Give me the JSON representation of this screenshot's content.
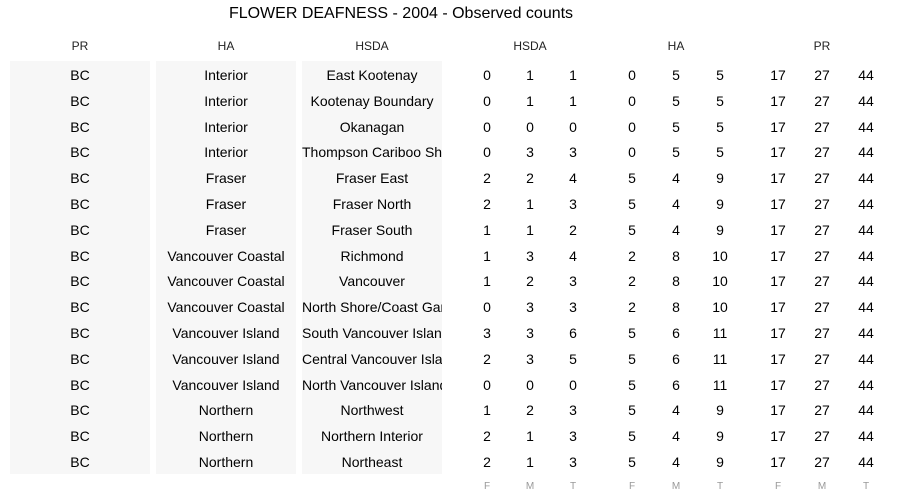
{
  "chart_data": {
    "type": "table",
    "title": "FLOWER DEAFNESS - 2004 - Observed counts",
    "text_headers": [
      "PR",
      "HA",
      "HSDA"
    ],
    "group_headers": [
      "HSDA",
      "HA",
      "PR"
    ],
    "sub_headers": [
      "F",
      "M",
      "T"
    ],
    "rows": [
      {
        "pr": "BC",
        "ha": "Interior",
        "hsda": "East Kootenay",
        "hsda_counts": [
          0,
          1,
          1
        ],
        "ha_counts": [
          0,
          5,
          5
        ],
        "pr_counts": [
          17,
          27,
          44
        ]
      },
      {
        "pr": "BC",
        "ha": "Interior",
        "hsda": "Kootenay Boundary",
        "hsda_counts": [
          0,
          1,
          1
        ],
        "ha_counts": [
          0,
          5,
          5
        ],
        "pr_counts": [
          17,
          27,
          44
        ]
      },
      {
        "pr": "BC",
        "ha": "Interior",
        "hsda": "Okanagan",
        "hsda_counts": [
          0,
          0,
          0
        ],
        "ha_counts": [
          0,
          5,
          5
        ],
        "pr_counts": [
          17,
          27,
          44
        ]
      },
      {
        "pr": "BC",
        "ha": "Interior",
        "hsda": "Thompson Cariboo Shuswap",
        "hsda_counts": [
          0,
          3,
          3
        ],
        "ha_counts": [
          0,
          5,
          5
        ],
        "pr_counts": [
          17,
          27,
          44
        ]
      },
      {
        "pr": "BC",
        "ha": "Fraser",
        "hsda": "Fraser East",
        "hsda_counts": [
          2,
          2,
          4
        ],
        "ha_counts": [
          5,
          4,
          9
        ],
        "pr_counts": [
          17,
          27,
          44
        ]
      },
      {
        "pr": "BC",
        "ha": "Fraser",
        "hsda": "Fraser North",
        "hsda_counts": [
          2,
          1,
          3
        ],
        "ha_counts": [
          5,
          4,
          9
        ],
        "pr_counts": [
          17,
          27,
          44
        ]
      },
      {
        "pr": "BC",
        "ha": "Fraser",
        "hsda": "Fraser South",
        "hsda_counts": [
          1,
          1,
          2
        ],
        "ha_counts": [
          5,
          4,
          9
        ],
        "pr_counts": [
          17,
          27,
          44
        ]
      },
      {
        "pr": "BC",
        "ha": "Vancouver Coastal",
        "hsda": "Richmond",
        "hsda_counts": [
          1,
          3,
          4
        ],
        "ha_counts": [
          2,
          8,
          10
        ],
        "pr_counts": [
          17,
          27,
          44
        ]
      },
      {
        "pr": "BC",
        "ha": "Vancouver Coastal",
        "hsda": "Vancouver",
        "hsda_counts": [
          1,
          2,
          3
        ],
        "ha_counts": [
          2,
          8,
          10
        ],
        "pr_counts": [
          17,
          27,
          44
        ]
      },
      {
        "pr": "BC",
        "ha": "Vancouver Coastal",
        "hsda": "North Shore/Coast Garibaldi",
        "hsda_counts": [
          0,
          3,
          3
        ],
        "ha_counts": [
          2,
          8,
          10
        ],
        "pr_counts": [
          17,
          27,
          44
        ]
      },
      {
        "pr": "BC",
        "ha": "Vancouver Island",
        "hsda": "South Vancouver Island",
        "hsda_counts": [
          3,
          3,
          6
        ],
        "ha_counts": [
          5,
          6,
          11
        ],
        "pr_counts": [
          17,
          27,
          44
        ]
      },
      {
        "pr": "BC",
        "ha": "Vancouver Island",
        "hsda": "Central Vancouver Island",
        "hsda_counts": [
          2,
          3,
          5
        ],
        "ha_counts": [
          5,
          6,
          11
        ],
        "pr_counts": [
          17,
          27,
          44
        ]
      },
      {
        "pr": "BC",
        "ha": "Vancouver Island",
        "hsda": "North Vancouver Island",
        "hsda_counts": [
          0,
          0,
          0
        ],
        "ha_counts": [
          5,
          6,
          11
        ],
        "pr_counts": [
          17,
          27,
          44
        ]
      },
      {
        "pr": "BC",
        "ha": "Northern",
        "hsda": "Northwest",
        "hsda_counts": [
          1,
          2,
          3
        ],
        "ha_counts": [
          5,
          4,
          9
        ],
        "pr_counts": [
          17,
          27,
          44
        ]
      },
      {
        "pr": "BC",
        "ha": "Northern",
        "hsda": "Northern Interior",
        "hsda_counts": [
          2,
          1,
          3
        ],
        "ha_counts": [
          5,
          4,
          9
        ],
        "pr_counts": [
          17,
          27,
          44
        ]
      },
      {
        "pr": "BC",
        "ha": "Northern",
        "hsda": "Northeast",
        "hsda_counts": [
          2,
          1,
          3
        ],
        "ha_counts": [
          5,
          4,
          9
        ],
        "pr_counts": [
          17,
          27,
          44
        ]
      }
    ]
  }
}
